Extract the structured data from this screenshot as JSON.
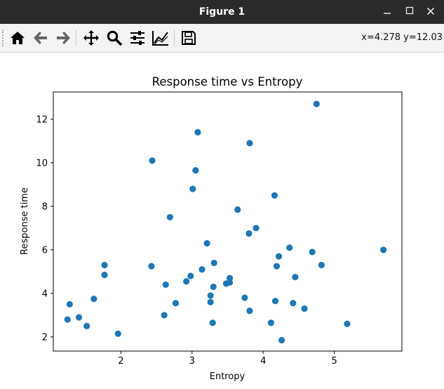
{
  "window": {
    "title": "Figure 1",
    "minimize_icon": "minimize-icon",
    "maximize_icon": "maximize-icon",
    "close_icon": "close-icon"
  },
  "toolbar": {
    "tools": [
      {
        "name": "home-button",
        "icon": "home-icon"
      },
      {
        "name": "back-button",
        "icon": "arrow-left-icon"
      },
      {
        "name": "forward-button",
        "icon": "arrow-right-icon"
      },
      {
        "name": "pan-button",
        "icon": "move-icon"
      },
      {
        "name": "zoom-button",
        "icon": "magnifier-icon"
      },
      {
        "name": "configure-subplots-button",
        "icon": "sliders-icon"
      },
      {
        "name": "edit-axis-button",
        "icon": "line-chart-icon"
      },
      {
        "name": "save-button",
        "icon": "floppy-disk-icon"
      }
    ],
    "coordinates": "x=4.278 y=12.03"
  },
  "colors": {
    "marker": "#1f77b4",
    "titlebar": "#2b2b2b",
    "toolbar": "#f3f3f3"
  },
  "chart_data": {
    "type": "scatter",
    "title": "Response time vs Entropy",
    "xlabel": "Entropy",
    "ylabel": "Response time",
    "xlim": [
      1.05,
      5.95
    ],
    "ylim": [
      1.35,
      13.25
    ],
    "xticks": [
      2,
      3,
      4,
      5
    ],
    "yticks": [
      2,
      4,
      6,
      8,
      10,
      12
    ],
    "grid": false,
    "points": [
      {
        "x": 1.25,
        "y": 2.8
      },
      {
        "x": 1.28,
        "y": 3.5
      },
      {
        "x": 1.41,
        "y": 2.9
      },
      {
        "x": 1.52,
        "y": 2.5
      },
      {
        "x": 1.62,
        "y": 3.75
      },
      {
        "x": 1.77,
        "y": 5.3
      },
      {
        "x": 1.77,
        "y": 4.85
      },
      {
        "x": 1.96,
        "y": 2.15
      },
      {
        "x": 2.44,
        "y": 10.1
      },
      {
        "x": 2.43,
        "y": 5.25
      },
      {
        "x": 2.61,
        "y": 3.0
      },
      {
        "x": 2.63,
        "y": 4.4
      },
      {
        "x": 2.69,
        "y": 7.5
      },
      {
        "x": 2.77,
        "y": 3.55
      },
      {
        "x": 2.92,
        "y": 4.55
      },
      {
        "x": 2.98,
        "y": 4.8
      },
      {
        "x": 3.01,
        "y": 8.8
      },
      {
        "x": 3.05,
        "y": 9.65
      },
      {
        "x": 3.08,
        "y": 11.4
      },
      {
        "x": 3.14,
        "y": 5.1
      },
      {
        "x": 3.21,
        "y": 6.3
      },
      {
        "x": 3.26,
        "y": 3.9
      },
      {
        "x": 3.26,
        "y": 3.6
      },
      {
        "x": 3.29,
        "y": 2.65
      },
      {
        "x": 3.3,
        "y": 4.3
      },
      {
        "x": 3.31,
        "y": 5.4
      },
      {
        "x": 3.48,
        "y": 4.45
      },
      {
        "x": 3.53,
        "y": 4.7
      },
      {
        "x": 3.53,
        "y": 4.5
      },
      {
        "x": 3.64,
        "y": 7.85
      },
      {
        "x": 3.74,
        "y": 3.8
      },
      {
        "x": 3.8,
        "y": 6.75
      },
      {
        "x": 3.81,
        "y": 10.9
      },
      {
        "x": 3.81,
        "y": 3.2
      },
      {
        "x": 3.9,
        "y": 7.0
      },
      {
        "x": 4.11,
        "y": 2.65
      },
      {
        "x": 4.16,
        "y": 8.5
      },
      {
        "x": 4.17,
        "y": 3.65
      },
      {
        "x": 4.19,
        "y": 5.25
      },
      {
        "x": 4.22,
        "y": 5.7
      },
      {
        "x": 4.26,
        "y": 1.85
      },
      {
        "x": 4.37,
        "y": 6.1
      },
      {
        "x": 4.42,
        "y": 3.55
      },
      {
        "x": 4.45,
        "y": 4.75
      },
      {
        "x": 4.58,
        "y": 3.3
      },
      {
        "x": 4.69,
        "y": 5.9
      },
      {
        "x": 4.75,
        "y": 12.7
      },
      {
        "x": 4.82,
        "y": 5.3
      },
      {
        "x": 5.18,
        "y": 2.6
      },
      {
        "x": 5.69,
        "y": 6.0
      }
    ]
  }
}
